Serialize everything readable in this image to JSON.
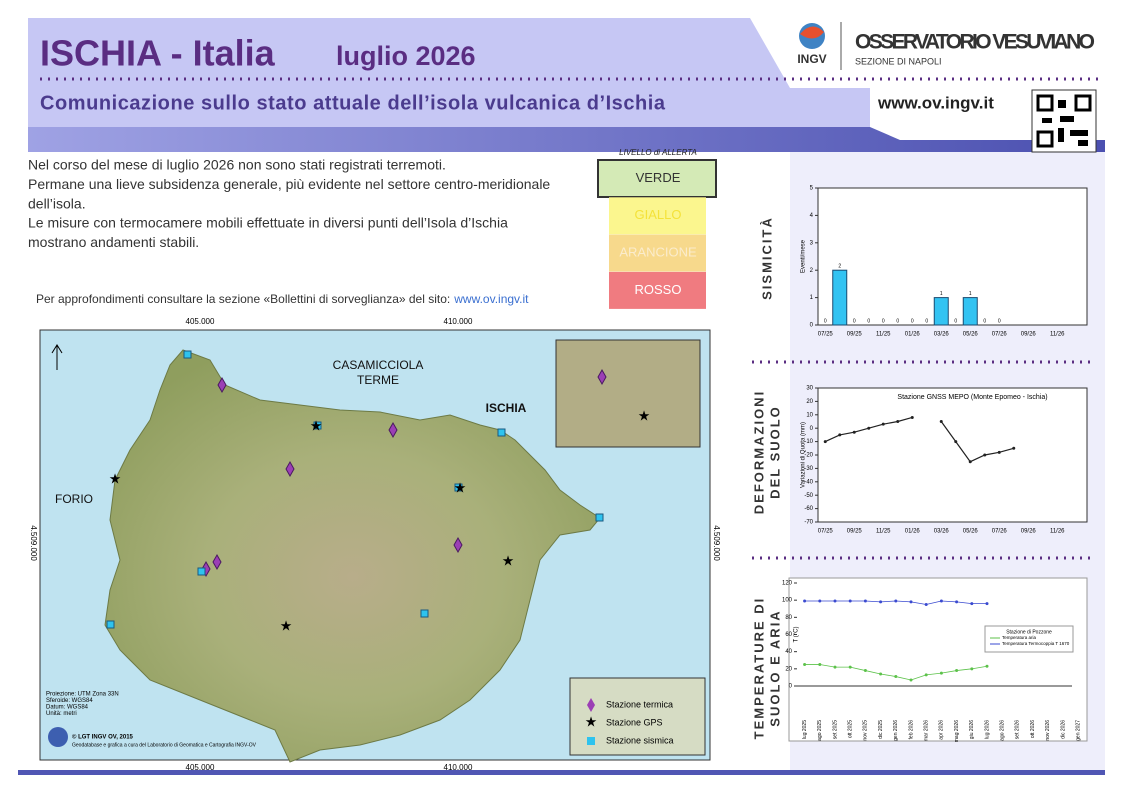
{
  "header": {
    "title": "ISCHIA  -  Italia",
    "month": "luglio 2026",
    "subtitle": "Comunicazione sullo stato attuale dell’isola vulcanica d’Ischia",
    "logo": "INGV",
    "org": "OSSERVATORIO VESUVIANO",
    "org_sub": "SEZIONE DI NAPOLI",
    "url": "www.ov.ingv.it"
  },
  "summary": {
    "lines": [
      "Nel corso del mese di luglio 2026 non sono stati registrati terremoti.",
      "Permane una lieve subsidenza generale, più evidente nel settore centro-meridionale",
      "dell’isola.",
      "Le misure con termocamere mobili effettuate in diversi punti dell’Isola d’Ischia",
      "mostrano andamenti stabili."
    ],
    "more_info": "Per approfondimenti consultare la sezione «Bollettini di sorveglianza» del sito:",
    "link": "www.ov.ingv.it"
  },
  "alert": {
    "title": "LIVELLO di ALLERTA",
    "levels": [
      {
        "label": "VERDE",
        "color": "#d4eab6",
        "text_color": "#333333"
      },
      {
        "label": "GIALLO",
        "color": "#fbf68e",
        "text_color": "#f4e23a"
      },
      {
        "label": "ARANCIONE",
        "color": "#f7d98c",
        "text_color": "#fbeccc"
      },
      {
        "label": "ROSSO",
        "color": "#f07b80",
        "text_color": "#ffffff"
      }
    ]
  },
  "map": {
    "top_ticks": [
      "405.000",
      "410.000"
    ],
    "side_tick": "4.509.000",
    "labels": [
      "CASAMICCIOLA",
      "TERME",
      "ISCHIA",
      "FORIO"
    ],
    "credits": [
      "Proiezione: UTM Zona 33N",
      "Sferoide: WGS84",
      "Datum: WGS84",
      "Unità: metri"
    ],
    "copyright": "© LGT INGV OV, 2015",
    "made_by": "Geodatabase e grafica a cura del Laboratorio di Geomatica e Cartografia INGV-OV",
    "legend": [
      "Stazione termica",
      "Stazione GPS",
      "Stazione sismica"
    ]
  },
  "sections": [
    [
      "SISMICITÀ"
    ],
    [
      "DEFORMAZIONI",
      "DEL SUOLO"
    ],
    [
      "TEMPERATURE DI",
      "SUOLO E ARIA"
    ]
  ],
  "chart_data": [
    {
      "type": "bar",
      "y_label": "Eventi/mese",
      "color": "#33c3f2",
      "ylim": [
        0,
        5
      ],
      "yticks": [
        0,
        1,
        2,
        3,
        4,
        5
      ],
      "categories": [
        "07/25",
        null,
        "09/25",
        null,
        "11/25",
        null,
        "01/26",
        null,
        "03/26",
        null,
        "05/26",
        null,
        "07/26",
        null,
        "09/26",
        null,
        "11/26",
        null
      ],
      "values": [
        0,
        2,
        0,
        0,
        0,
        0,
        0,
        0,
        1,
        0,
        1,
        0,
        0,
        null,
        null,
        null,
        null,
        null
      ]
    },
    {
      "type": "line",
      "title": "Stazione GNSS MEPO (Monte Epomeo - Ischia)",
      "y_label": "Variazioni di Quota (mm)",
      "ylim": [
        -70,
        30
      ],
      "yticks": [
        -70,
        -60,
        -50,
        -40,
        -30,
        -20,
        -10,
        0,
        10,
        20,
        30
      ],
      "categories": [
        "07/25",
        null,
        "09/25",
        null,
        "11/25",
        null,
        "01/26",
        null,
        "03/26",
        null,
        "05/26",
        null,
        "07/26",
        null,
        "09/26",
        null,
        "11/26",
        null
      ],
      "series": [
        {
          "name": "MEPO",
          "color": "#222222",
          "values": [
            -10,
            -5,
            -3,
            0,
            3,
            5,
            8,
            null,
            5,
            -10,
            -25,
            -20,
            -18,
            -15,
            null,
            null,
            null,
            null
          ]
        }
      ]
    },
    {
      "type": "line",
      "y_label": "T (°C)",
      "legend_title": "Stazione di Pozzone",
      "ylim": [
        0,
        120
      ],
      "yticks": [
        0,
        20,
        40,
        60,
        80,
        100,
        120
      ],
      "categories": [
        "lug 2025",
        "ago 2025",
        "set 2025",
        "ott 2025",
        "nov 2025",
        "dic 2025",
        "gen 2026",
        "feb 2026",
        "mar 2026",
        "apr 2026",
        "mag 2026",
        "giu 2026",
        "lug 2026",
        "ago 2026",
        "set 2026",
        "ott 2026",
        "nov 2026",
        "dic 2026",
        "gen 2027"
      ],
      "series": [
        {
          "name": "Temperatura aria",
          "color": "#5cc24a",
          "values": [
            25,
            25,
            22,
            22,
            18,
            14,
            11,
            7,
            13,
            15,
            18,
            20,
            23,
            null,
            null,
            null,
            null,
            null,
            null
          ]
        },
        {
          "name": "Temperatura Termocoppia T 1670",
          "color": "#3a4ad0",
          "values": [
            99,
            99,
            99,
            99,
            99,
            98,
            99,
            98,
            95,
            99,
            98,
            96,
            96,
            null,
            null,
            null,
            null,
            null,
            null
          ]
        }
      ]
    }
  ]
}
